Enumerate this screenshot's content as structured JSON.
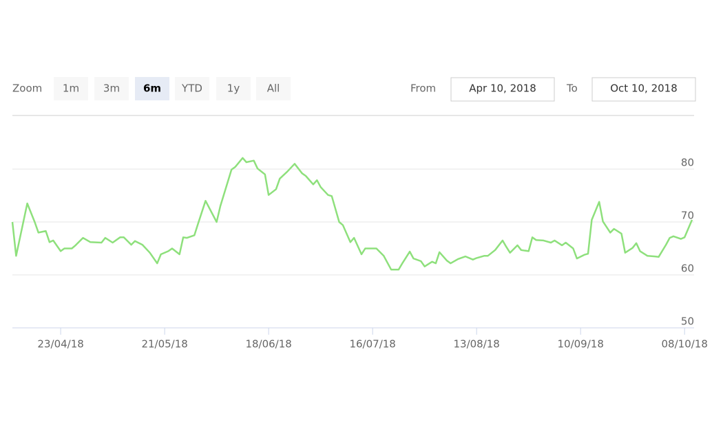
{
  "range_selector": {
    "zoom_label": "Zoom",
    "buttons": [
      "1m",
      "3m",
      "6m",
      "YTD",
      "1y",
      "All"
    ],
    "selected": 2,
    "from_label": "From",
    "from": "Apr 10, 2018",
    "to_label": "To",
    "to": "Oct 10, 2018"
  },
  "chart_data": {
    "type": "line",
    "color": "#8ee07c",
    "x": [
      "2018-04-10",
      "2018-04-11",
      "2018-04-14",
      "2018-04-16",
      "2018-04-17",
      "2018-04-19",
      "2018-04-20",
      "2018-04-21",
      "2018-04-23",
      "2018-04-24",
      "2018-04-26",
      "2018-04-27",
      "2018-04-29",
      "2018-05-01",
      "2018-05-04",
      "2018-05-05",
      "2018-05-07",
      "2018-05-09",
      "2018-05-10",
      "2018-05-12",
      "2018-05-13",
      "2018-05-15",
      "2018-05-17",
      "2018-05-19",
      "2018-05-20",
      "2018-05-22",
      "2018-05-23",
      "2018-05-25",
      "2018-05-26",
      "2018-05-27",
      "2018-05-29",
      "2018-05-30",
      "2018-06-01",
      "2018-06-04",
      "2018-06-05",
      "2018-06-08",
      "2018-06-09",
      "2018-06-11",
      "2018-06-12",
      "2018-06-14",
      "2018-06-15",
      "2018-06-17",
      "2018-06-18",
      "2018-06-20",
      "2018-06-21",
      "2018-06-23",
      "2018-06-25",
      "2018-06-27",
      "2018-06-28",
      "2018-06-30",
      "2018-07-01",
      "2018-07-02",
      "2018-07-04",
      "2018-07-05",
      "2018-07-07",
      "2018-07-08",
      "2018-07-10",
      "2018-07-11",
      "2018-07-13",
      "2018-07-14",
      "2018-07-17",
      "2018-07-19",
      "2018-07-21",
      "2018-07-23",
      "2018-07-24",
      "2018-07-26",
      "2018-07-27",
      "2018-07-29",
      "2018-07-30",
      "2018-08-01",
      "2018-08-02",
      "2018-08-03",
      "2018-08-05",
      "2018-08-06",
      "2018-08-08",
      "2018-08-10",
      "2018-08-12",
      "2018-08-13",
      "2018-08-15",
      "2018-08-16",
      "2018-08-18",
      "2018-08-20",
      "2018-08-21",
      "2018-08-22",
      "2018-08-24",
      "2018-08-25",
      "2018-08-27",
      "2018-08-28",
      "2018-08-29",
      "2018-08-31",
      "2018-09-02",
      "2018-09-03",
      "2018-09-05",
      "2018-09-06",
      "2018-09-08",
      "2018-09-09",
      "2018-09-11",
      "2018-09-12",
      "2018-09-13",
      "2018-09-15",
      "2018-09-16",
      "2018-09-18",
      "2018-09-19",
      "2018-09-21",
      "2018-09-22",
      "2018-09-24",
      "2018-09-25",
      "2018-09-26",
      "2018-09-28",
      "2018-09-30",
      "2018-10-01",
      "2018-10-03",
      "2018-10-04",
      "2018-10-05",
      "2018-10-07",
      "2018-10-08",
      "2018-10-10"
    ],
    "values": [
      70,
      63.6,
      73.5,
      70,
      68,
      68.3,
      66.2,
      66.5,
      64.5,
      65,
      65,
      65.6,
      67,
      66.2,
      66.1,
      67,
      66.1,
      67.1,
      67.1,
      65.7,
      66.4,
      65.7,
      64.2,
      62.2,
      63.9,
      64.5,
      65,
      63.9,
      67.1,
      67,
      67.5,
      69.7,
      74,
      70,
      73,
      79.9,
      80.4,
      82.1,
      81.3,
      81.6,
      80.1,
      79,
      75.1,
      76.2,
      78.2,
      79.5,
      81,
      79.2,
      78.7,
      77.1,
      77.9,
      76.6,
      75.1,
      74.9,
      70,
      69.4,
      66.2,
      67,
      63.9,
      65,
      65,
      63.6,
      61,
      61,
      62.2,
      64.4,
      63.1,
      62.6,
      61.6,
      62.5,
      62.2,
      64.3,
      62.7,
      62.2,
      63,
      63.5,
      62.9,
      63.2,
      63.6,
      63.6,
      64.7,
      66.5,
      65.3,
      64.2,
      65.6,
      64.7,
      64.5,
      67.1,
      66.6,
      66.5,
      66.1,
      66.5,
      65.6,
      66.1,
      65,
      63.1,
      63.8,
      64,
      70.4,
      73.8,
      70.1,
      68,
      68.7,
      67.8,
      64.2,
      65.1,
      66,
      64.5,
      63.6,
      63.5,
      63.4,
      65.7,
      67,
      67.3,
      66.8,
      67.1,
      70.4
    ],
    "xlim": [
      "2018-04-10",
      "2018-10-10"
    ],
    "xticks": [
      {
        "value": "2018-04-23",
        "label": "23/04/18"
      },
      {
        "value": "2018-05-21",
        "label": "21/05/18"
      },
      {
        "value": "2018-06-18",
        "label": "18/06/18"
      },
      {
        "value": "2018-07-16",
        "label": "16/07/18"
      },
      {
        "value": "2018-08-13",
        "label": "13/08/18"
      },
      {
        "value": "2018-09-10",
        "label": "10/09/18"
      },
      {
        "value": "2018-10-08",
        "label": "08/10/18"
      }
    ],
    "ylim": [
      50,
      90
    ],
    "yticks": [
      50,
      60,
      70,
      80
    ],
    "grid": true
  }
}
